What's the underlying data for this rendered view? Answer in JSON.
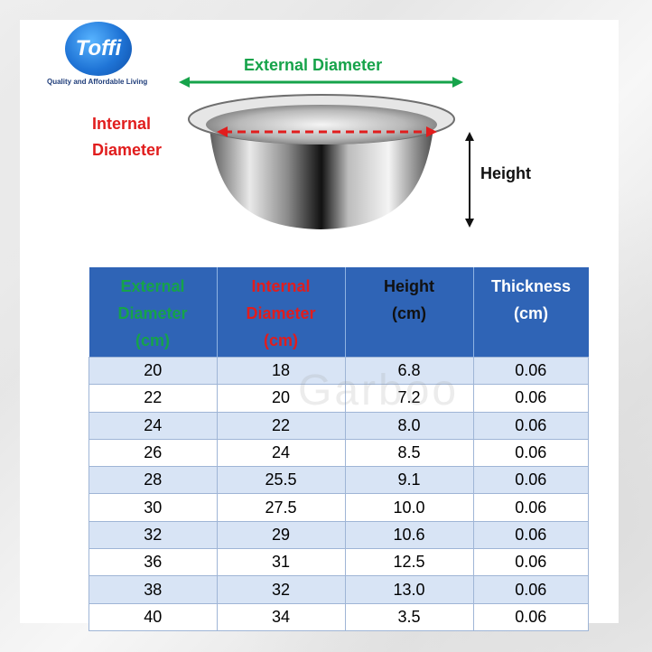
{
  "brand": {
    "logo_text": "Toffi",
    "tagline": "Quality and Affordable Living"
  },
  "diagram": {
    "external_diameter_label": "External Diameter",
    "internal_diameter_label": "Internal Diameter",
    "height_label": "Height"
  },
  "table": {
    "headers": [
      {
        "label": "External Diameter (cm)",
        "color": "#16a34a"
      },
      {
        "label": "Internal Diameter (cm)",
        "color": "#e11d1d"
      },
      {
        "label": "Height (cm)",
        "color": "#111111"
      },
      {
        "label": "Thickness (cm)",
        "color": "#ffffff"
      }
    ],
    "rows": [
      [
        "20",
        "18",
        "6.8",
        "0.06"
      ],
      [
        "22",
        "20",
        "7.2",
        "0.06"
      ],
      [
        "24",
        "22",
        "8.0",
        "0.06"
      ],
      [
        "26",
        "24",
        "8.5",
        "0.06"
      ],
      [
        "28",
        "25.5",
        "9.1",
        "0.06"
      ],
      [
        "30",
        "27.5",
        "10.0",
        "0.06"
      ],
      [
        "32",
        "29",
        "10.6",
        "0.06"
      ],
      [
        "36",
        "31",
        "12.5",
        "0.06"
      ],
      [
        "38",
        "32",
        "13.0",
        "0.06"
      ],
      [
        "40",
        "34",
        "3.5",
        "0.06"
      ]
    ]
  },
  "watermark": "Garboo",
  "colors": {
    "header_bg": "#2f64b6",
    "row_alt": "#d8e4f5",
    "row_plain": "#ffffff"
  }
}
